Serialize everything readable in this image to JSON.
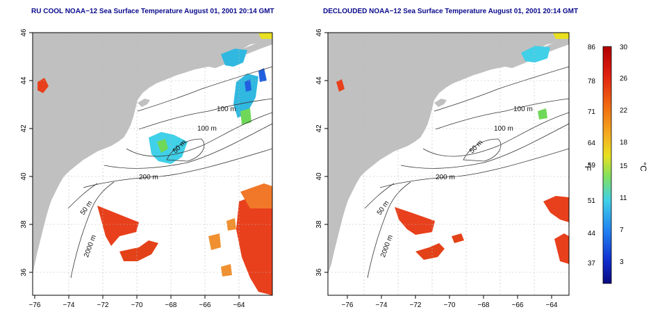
{
  "titles": {
    "left": "RU COOL NOAA−12 Sea Surface Temperature August 01, 2001 20:14 GMT",
    "right": "DECLOUDED NOAA−12 Sea Surface Temperature August 01, 2001 20:14 GMT"
  },
  "map": {
    "lon_ticks": [
      "−76",
      "−74",
      "−72",
      "−70",
      "−68",
      "−66",
      "−64"
    ],
    "lat_ticks": [
      "46",
      "44",
      "42",
      "40",
      "38",
      "36"
    ],
    "contour_labels": {
      "c100a": "100 m",
      "c100b": "100 m",
      "c50a": "50 m",
      "c200": "200 m",
      "c50b": "50 m",
      "c2000": "2000 m"
    },
    "colors": {
      "land": "#c0c0c0",
      "ocean": "#ffffff",
      "grid": "#b8b8b8",
      "contour": "#333333",
      "warm_water": "#e8401c",
      "cool_water": "#40d0e8"
    }
  },
  "colorbar": {
    "fahrenheit_labels": [
      "86",
      "78",
      "71",
      "64",
      "59",
      "51",
      "44",
      "37"
    ],
    "celsius_labels": [
      "30",
      "26",
      "22",
      "18",
      "15",
      "11",
      "7",
      "3"
    ],
    "left_unit": "°F",
    "right_unit": "°C",
    "gradient": [
      "#e01010",
      "#f05a10",
      "#f5a020",
      "#e8e020",
      "#80e060",
      "#40d0e8",
      "#2080f0",
      "#1020c0",
      "#0a0a80"
    ]
  }
}
